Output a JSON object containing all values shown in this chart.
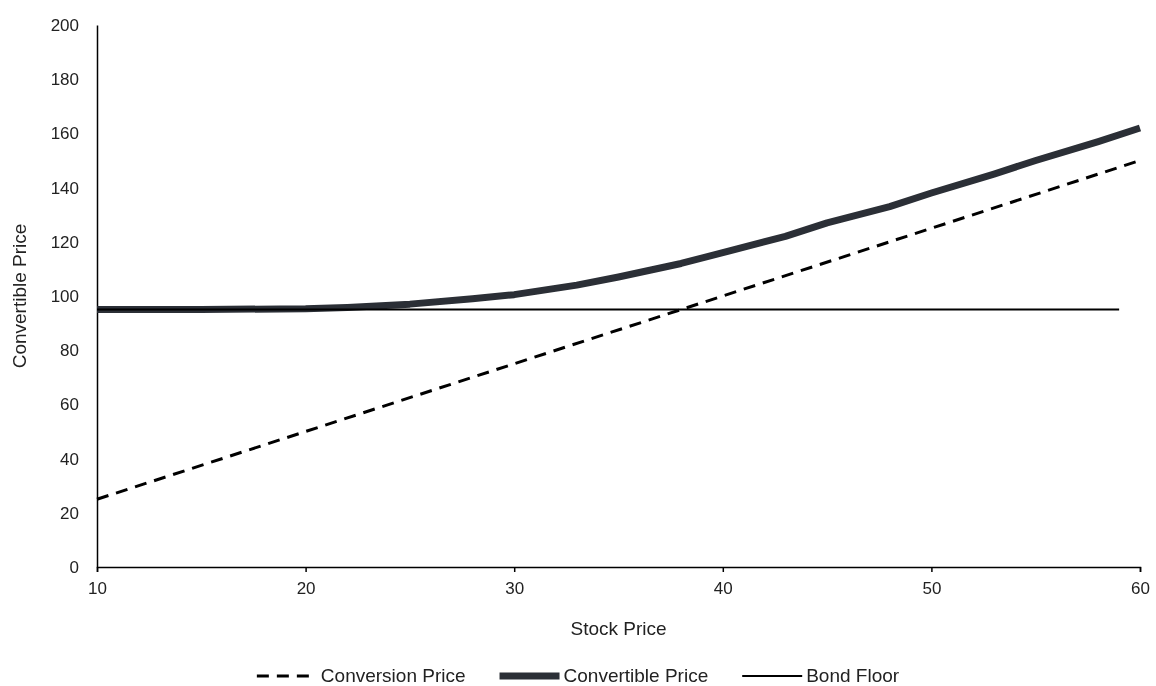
{
  "chart_data": {
    "type": "line",
    "xlabel": "Stock Price",
    "ylabel": "Convertible Price",
    "xlim": [
      10,
      60
    ],
    "xticks": [
      10,
      20,
      30,
      40,
      50,
      60
    ],
    "ylim": [
      0,
      200
    ],
    "yticks": [
      0,
      20,
      40,
      60,
      80,
      100,
      120,
      140,
      160,
      180,
      200
    ],
    "grid": false,
    "legend": "bottom",
    "marker": "none",
    "series": [
      {
        "name": "Conversion Price",
        "color": "#000000",
        "line_style": "dashed",
        "x": [
          10,
          60
        ],
        "values": [
          25,
          150
        ]
      },
      {
        "name": "Convertible Price",
        "color": "#2b2f36",
        "line_style": "solid",
        "x": [
          10,
          15,
          20,
          22,
          25,
          28,
          30,
          33,
          35,
          38,
          40,
          43,
          45,
          48,
          50,
          53,
          55,
          58,
          60
        ],
        "values": [
          95,
          95,
          95.3,
          95.8,
          97,
          99,
          100.5,
          104,
          107,
          112,
          116,
          122,
          127,
          133,
          138,
          145,
          150,
          157,
          162
        ]
      },
      {
        "name": "Bond Floor",
        "color": "#000000",
        "line_style": "solid",
        "x": [
          10,
          59
        ],
        "values": [
          95,
          95
        ]
      }
    ]
  }
}
